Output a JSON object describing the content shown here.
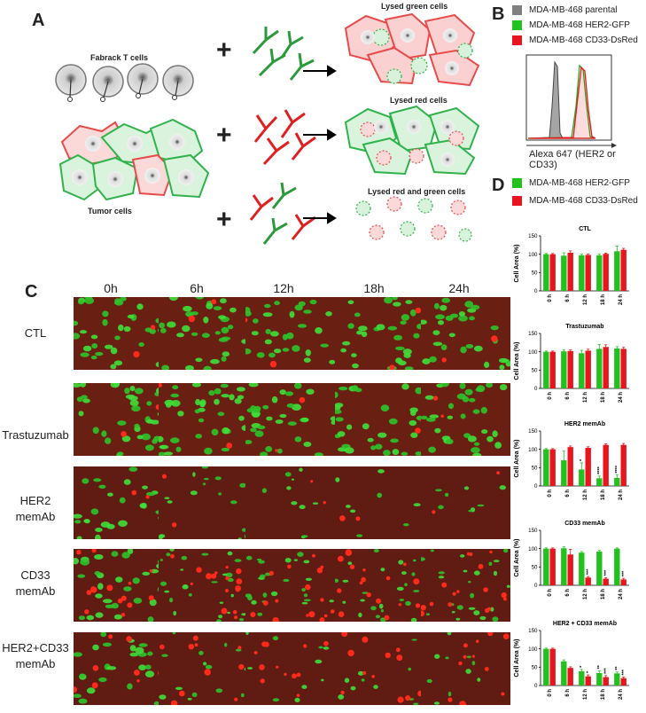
{
  "panels": {
    "a": "A",
    "b": "B",
    "c": "C",
    "d": "D"
  },
  "panel_a": {
    "t_cells_label": "Fabrack T cells",
    "tumor_label": "Tumor cells",
    "plus": "+",
    "outcomes": [
      "Lysed green cells",
      "Lysed red cells",
      "Lysed red and green cells"
    ]
  },
  "panel_b": {
    "legend": [
      {
        "label": "MDA-MB-468 parental",
        "color": "#808080"
      },
      {
        "label": "MDA-MB-468 HER2-GFP",
        "color": "#22c21e"
      },
      {
        "label": "MDA-MB-468 CD33-DsRed",
        "color": "#e8141e"
      }
    ],
    "xlabel": "Alexa 647 (HER2 or CD33)"
  },
  "panel_c": {
    "columns": [
      "0h",
      "6h",
      "12h",
      "18h",
      "24h"
    ],
    "rows": [
      {
        "line1": "CTL",
        "line2": ""
      },
      {
        "line1": "Trastuzumab",
        "line2": ""
      },
      {
        "line1": "HER2",
        "line2": "memAb"
      },
      {
        "line1": "CD33",
        "line2": "memAb"
      },
      {
        "line1": "HER2+CD33",
        "line2": "memAb"
      }
    ]
  },
  "panel_d": {
    "legend": [
      {
        "label": "MDA-MB-468 HER2-GFP",
        "color": "#22c21e"
      },
      {
        "label": "MDA-MB-468 CD33-DsRed",
        "color": "#e8141e"
      }
    ]
  },
  "chart_data": [
    {
      "type": "bar",
      "title": "CTL",
      "ylabel": "Cell Area (%)",
      "categories": [
        "0 h",
        "6 h",
        "12 h",
        "18 h",
        "24 h"
      ],
      "ylim": [
        0,
        150
      ],
      "yticks": [
        0,
        50,
        100,
        150
      ],
      "series": [
        {
          "name": "MDA-MB-468 HER2-GFP",
          "values": [
            100,
            96,
            97,
            97,
            108
          ],
          "errors": [
            2,
            8,
            3,
            3,
            14
          ]
        },
        {
          "name": "MDA-MB-468 CD33-DsRed",
          "values": [
            100,
            104,
            98,
            101,
            112
          ],
          "errors": [
            2,
            5,
            3,
            2,
            4
          ]
        }
      ],
      "significance": []
    },
    {
      "type": "bar",
      "title": "Trastuzumab",
      "ylabel": "Cell Area (%)",
      "categories": [
        "0 h",
        "6 h",
        "12 h",
        "18 h",
        "24 h"
      ],
      "ylim": [
        0,
        150
      ],
      "yticks": [
        0,
        50,
        100,
        150
      ],
      "series": [
        {
          "name": "MDA-MB-468 HER2-GFP",
          "values": [
            100,
            101,
            96,
            108,
            109
          ],
          "errors": [
            2,
            4,
            8,
            12,
            5
          ]
        },
        {
          "name": "MDA-MB-468 CD33-DsRed",
          "values": [
            100,
            102,
            103,
            113,
            108
          ],
          "errors": [
            2,
            3,
            4,
            6,
            4
          ]
        }
      ],
      "significance": []
    },
    {
      "type": "bar",
      "title": "HER2 memAb",
      "ylabel": "Cell Area (%)",
      "categories": [
        "0 h",
        "6 h",
        "12 h",
        "18 h",
        "24 h"
      ],
      "ylim": [
        0,
        150
      ],
      "yticks": [
        0,
        50,
        100,
        150
      ],
      "series": [
        {
          "name": "MDA-MB-468 HER2-GFP",
          "values": [
            100,
            70,
            45,
            21,
            22
          ],
          "errors": [
            2,
            25,
            18,
            6,
            8
          ]
        },
        {
          "name": "MDA-MB-468 CD33-DsRed",
          "values": [
            100,
            106,
            104,
            112,
            112
          ],
          "errors": [
            2,
            3,
            3,
            3,
            4
          ]
        }
      ],
      "significance": [
        {
          "series": 0,
          "index": 2,
          "label": "*"
        },
        {
          "series": 0,
          "index": 3,
          "label": "****"
        },
        {
          "series": 0,
          "index": 4,
          "label": "****"
        }
      ]
    },
    {
      "type": "bar",
      "title": "CD33 memAb",
      "ylabel": "Cell Area (%)",
      "categories": [
        "0 h",
        "6 h",
        "12 h",
        "18 h",
        "24 h"
      ],
      "ylim": [
        0,
        150
      ],
      "yticks": [
        0,
        50,
        100,
        150
      ],
      "series": [
        {
          "name": "MDA-MB-468 HER2-GFP",
          "values": [
            100,
            101,
            89,
            92,
            100
          ],
          "errors": [
            2,
            4,
            3,
            3,
            2
          ]
        },
        {
          "name": "MDA-MB-468 CD33-DsRed",
          "values": [
            100,
            84,
            21,
            18,
            16
          ],
          "errors": [
            2,
            14,
            3,
            3,
            3
          ]
        }
      ],
      "significance": [
        {
          "series": 1,
          "index": 2,
          "label": "***"
        },
        {
          "series": 1,
          "index": 3,
          "label": "***"
        },
        {
          "series": 1,
          "index": 4,
          "label": "***"
        }
      ]
    },
    {
      "type": "bar",
      "title": "HER2 + CD33 memAb",
      "ylabel": "Cell Area (%)",
      "categories": [
        "0 h",
        "6 h",
        "12 h",
        "18 h",
        "24 h"
      ],
      "ylim": [
        0,
        150
      ],
      "yticks": [
        0,
        50,
        100,
        150
      ],
      "series": [
        {
          "name": "MDA-MB-468 HER2-GFP",
          "values": [
            100,
            66,
            39,
            34,
            33
          ],
          "errors": [
            2,
            4,
            5,
            6,
            4
          ]
        },
        {
          "name": "MDA-MB-468 CD33-DsRed",
          "values": [
            100,
            48,
            25,
            23,
            20
          ],
          "errors": [
            2,
            3,
            4,
            4,
            3
          ]
        }
      ],
      "significance": [
        {
          "series": 0,
          "index": 2,
          "label": "*"
        },
        {
          "series": 1,
          "index": 2,
          "label": "*"
        },
        {
          "series": 0,
          "index": 3,
          "label": "**"
        },
        {
          "series": 1,
          "index": 3,
          "label": "***"
        },
        {
          "series": 0,
          "index": 4,
          "label": "**"
        },
        {
          "series": 1,
          "index": 4,
          "label": "***"
        }
      ]
    }
  ]
}
